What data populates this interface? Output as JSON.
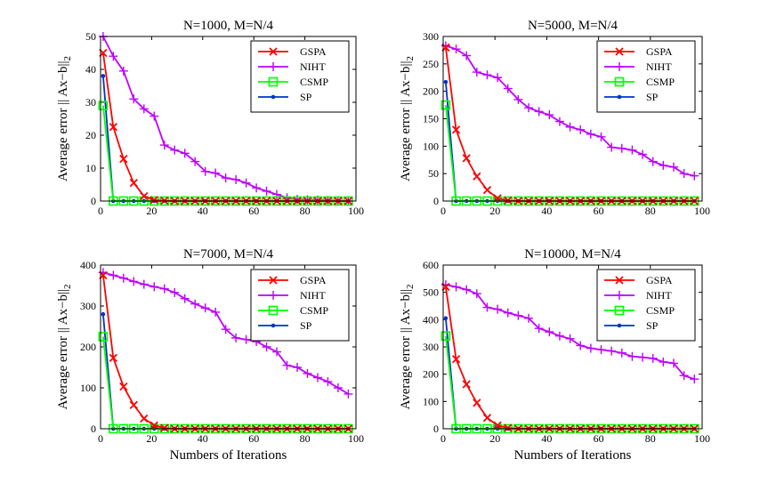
{
  "figure": {
    "ylabel_text": "Average error || Ax−b||",
    "ylabel_subscript": "2",
    "xlabel_text": "Numbers of Iterations"
  },
  "series_styles": [
    {
      "name": "GSPA",
      "color": "#ff0000",
      "marker": "x"
    },
    {
      "name": "NIHT",
      "color": "#bf00ff",
      "marker": "plus"
    },
    {
      "name": "CSMP",
      "color": "#00ff00",
      "marker": "square"
    },
    {
      "name": "SP",
      "color": "#0033cc",
      "marker": "dot"
    }
  ],
  "chart_data": [
    {
      "type": "line",
      "title": "N=1000, M=N/4",
      "xlim": [
        0,
        100
      ],
      "ylim": [
        0,
        50
      ],
      "xticks": [
        0,
        20,
        40,
        60,
        80,
        100
      ],
      "yticks": [
        0,
        10,
        20,
        30,
        40,
        50
      ],
      "xlabel": "",
      "ylabel": "Average error || Ax−b||2",
      "legend": "top-right",
      "series": [
        {
          "name": "GSPA",
          "x": [
            1,
            5,
            9,
            13,
            17,
            21,
            25,
            29,
            33,
            37,
            41,
            45,
            49,
            53,
            57,
            61,
            65,
            69,
            73,
            77,
            81,
            85,
            89,
            93,
            97
          ],
          "y": [
            45,
            22.5,
            12.8,
            5.5,
            1.5,
            0.3,
            0.1,
            0,
            0,
            0,
            0,
            0,
            0,
            0,
            0,
            0,
            0,
            0,
            0,
            0,
            0,
            0,
            0,
            0,
            0
          ]
        },
        {
          "name": "NIHT",
          "x": [
            1,
            5,
            9,
            13,
            17,
            21,
            25,
            29,
            33,
            37,
            41,
            45,
            49,
            53,
            57,
            61,
            65,
            69,
            73,
            77,
            81,
            85,
            89,
            93,
            97
          ],
          "y": [
            50,
            44,
            39.5,
            31,
            28,
            25.8,
            17,
            15.5,
            14.5,
            12,
            9,
            8.5,
            7,
            6.5,
            5.5,
            4,
            3,
            2,
            1,
            0.5,
            0.4,
            0.3,
            0.2,
            0.1,
            0
          ]
        },
        {
          "name": "CSMP",
          "x": [
            1,
            5,
            9,
            13,
            17,
            21,
            25,
            29,
            33,
            37,
            41,
            45,
            49,
            53,
            57,
            61,
            65,
            69,
            73,
            77,
            81,
            85,
            89,
            93,
            97
          ],
          "y": [
            29,
            0,
            0,
            0,
            0,
            0,
            0,
            0,
            0,
            0,
            0,
            0,
            0,
            0,
            0,
            0,
            0,
            0,
            0,
            0,
            0,
            0,
            0,
            0,
            0
          ]
        },
        {
          "name": "SP",
          "x": [
            1,
            5,
            9,
            13,
            17,
            21,
            25,
            29,
            33,
            37,
            41,
            45,
            49,
            53,
            57,
            61,
            65,
            69,
            73,
            77,
            81,
            85,
            89,
            93,
            97
          ],
          "y": [
            38,
            0,
            0,
            0,
            0,
            0,
            0,
            0,
            0,
            0,
            0,
            0,
            0,
            0,
            0,
            0,
            0,
            0,
            0,
            0,
            0,
            0,
            0,
            0,
            0
          ]
        }
      ]
    },
    {
      "type": "line",
      "title": "N=5000, M=N/4",
      "xlim": [
        0,
        100
      ],
      "ylim": [
        0,
        300
      ],
      "xticks": [
        0,
        20,
        40,
        60,
        80,
        100
      ],
      "yticks": [
        0,
        50,
        100,
        150,
        200,
        250,
        300
      ],
      "xlabel": "",
      "ylabel": "Average error || Ax−b||2",
      "legend": "top-right",
      "series": [
        {
          "name": "GSPA",
          "x": [
            1,
            5,
            9,
            13,
            17,
            21,
            25,
            29,
            33,
            37,
            41,
            45,
            49,
            53,
            57,
            61,
            65,
            69,
            73,
            77,
            81,
            85,
            89,
            93,
            97
          ],
          "y": [
            280,
            130,
            78,
            45,
            20,
            5,
            1,
            0,
            0,
            0,
            0,
            0,
            0,
            0,
            0,
            0,
            0,
            0,
            0,
            0,
            0,
            0,
            0,
            0,
            0
          ]
        },
        {
          "name": "NIHT",
          "x": [
            1,
            5,
            9,
            13,
            17,
            21,
            25,
            29,
            33,
            37,
            41,
            45,
            49,
            53,
            57,
            61,
            65,
            69,
            73,
            77,
            81,
            85,
            89,
            93,
            97
          ],
          "y": [
            283,
            277,
            265,
            235,
            230,
            225,
            205,
            185,
            170,
            163,
            157,
            145,
            135,
            130,
            122,
            117,
            98,
            96,
            93,
            85,
            72,
            65,
            62,
            50,
            46
          ]
        },
        {
          "name": "CSMP",
          "x": [
            1,
            5,
            9,
            13,
            17,
            21,
            25,
            29,
            33,
            37,
            41,
            45,
            49,
            53,
            57,
            61,
            65,
            69,
            73,
            77,
            81,
            85,
            89,
            93,
            97
          ],
          "y": [
            175,
            0,
            0,
            0,
            0,
            0,
            0,
            0,
            0,
            0,
            0,
            0,
            0,
            0,
            0,
            0,
            0,
            0,
            0,
            0,
            0,
            0,
            0,
            0,
            0
          ]
        },
        {
          "name": "SP",
          "x": [
            1,
            5,
            9,
            13,
            17,
            21,
            25,
            29,
            33,
            37,
            41,
            45,
            49,
            53,
            57,
            61,
            65,
            69,
            73,
            77,
            81,
            85,
            89,
            93,
            97
          ],
          "y": [
            217,
            0,
            0,
            0,
            0,
            0,
            0,
            0,
            0,
            0,
            0,
            0,
            0,
            0,
            0,
            0,
            0,
            0,
            0,
            0,
            0,
            0,
            0,
            0,
            0
          ]
        }
      ]
    },
    {
      "type": "line",
      "title": "N=7000, M=N/4",
      "xlim": [
        0,
        100
      ],
      "ylim": [
        0,
        400
      ],
      "xticks": [
        0,
        20,
        40,
        60,
        80,
        100
      ],
      "yticks": [
        0,
        100,
        200,
        300,
        400
      ],
      "xlabel": "Numbers of Iterations",
      "ylabel": "Average error || Ax−b||2",
      "legend": "top-right",
      "series": [
        {
          "name": "GSPA",
          "x": [
            1,
            5,
            9,
            13,
            17,
            21,
            25,
            29,
            33,
            37,
            41,
            45,
            49,
            53,
            57,
            61,
            65,
            69,
            73,
            77,
            81,
            85,
            89,
            93,
            97
          ],
          "y": [
            375,
            173,
            103,
            58,
            25,
            8,
            2,
            0,
            0,
            0,
            0,
            0,
            0,
            0,
            0,
            0,
            0,
            0,
            0,
            0,
            0,
            0,
            0,
            0,
            0
          ]
        },
        {
          "name": "NIHT",
          "x": [
            1,
            5,
            9,
            13,
            17,
            21,
            25,
            29,
            33,
            37,
            41,
            45,
            49,
            53,
            57,
            61,
            65,
            69,
            73,
            77,
            81,
            85,
            89,
            93,
            97
          ],
          "y": [
            382,
            375,
            368,
            360,
            353,
            347,
            342,
            333,
            318,
            305,
            295,
            285,
            243,
            222,
            218,
            213,
            200,
            188,
            155,
            150,
            135,
            125,
            115,
            100,
            85
          ]
        },
        {
          "name": "CSMP",
          "x": [
            1,
            5,
            9,
            13,
            17,
            21,
            25,
            29,
            33,
            37,
            41,
            45,
            49,
            53,
            57,
            61,
            65,
            69,
            73,
            77,
            81,
            85,
            89,
            93,
            97
          ],
          "y": [
            225,
            0,
            0,
            0,
            0,
            0,
            0,
            0,
            0,
            0,
            0,
            0,
            0,
            0,
            0,
            0,
            0,
            0,
            0,
            0,
            0,
            0,
            0,
            0,
            0
          ]
        },
        {
          "name": "SP",
          "x": [
            1,
            5,
            9,
            13,
            17,
            21,
            25,
            29,
            33,
            37,
            41,
            45,
            49,
            53,
            57,
            61,
            65,
            69,
            73,
            77,
            81,
            85,
            89,
            93,
            97
          ],
          "y": [
            280,
            0,
            0,
            0,
            0,
            0,
            0,
            0,
            0,
            0,
            0,
            0,
            0,
            0,
            0,
            0,
            0,
            0,
            0,
            0,
            0,
            0,
            0,
            0,
            0
          ]
        }
      ]
    },
    {
      "type": "line",
      "title": "N=10000, M=N/4",
      "xlim": [
        0,
        100
      ],
      "ylim": [
        0,
        600
      ],
      "xticks": [
        0,
        20,
        40,
        60,
        80,
        100
      ],
      "yticks": [
        0,
        100,
        200,
        300,
        400,
        500,
        600
      ],
      "xlabel": "Numbers of Iterations",
      "ylabel": "Average error || Ax−b||2",
      "legend": "top-right",
      "series": [
        {
          "name": "GSPA",
          "x": [
            1,
            5,
            9,
            13,
            17,
            21,
            25,
            29,
            33,
            37,
            41,
            45,
            49,
            53,
            57,
            61,
            65,
            69,
            73,
            77,
            81,
            85,
            89,
            93,
            97
          ],
          "y": [
            520,
            255,
            163,
            95,
            40,
            12,
            3,
            0,
            0,
            0,
            0,
            0,
            0,
            0,
            0,
            0,
            0,
            0,
            0,
            0,
            0,
            0,
            0,
            0,
            0
          ]
        },
        {
          "name": "NIHT",
          "x": [
            1,
            5,
            9,
            13,
            17,
            21,
            25,
            29,
            33,
            37,
            41,
            45,
            49,
            53,
            57,
            61,
            65,
            69,
            73,
            77,
            81,
            85,
            89,
            93,
            97
          ],
          "y": [
            528,
            520,
            510,
            495,
            445,
            438,
            425,
            415,
            405,
            368,
            355,
            340,
            330,
            305,
            295,
            290,
            285,
            278,
            265,
            262,
            258,
            245,
            240,
            195,
            182
          ]
        },
        {
          "name": "CSMP",
          "x": [
            1,
            5,
            9,
            13,
            17,
            21,
            25,
            29,
            33,
            37,
            41,
            45,
            49,
            53,
            57,
            61,
            65,
            69,
            73,
            77,
            81,
            85,
            89,
            93,
            97
          ],
          "y": [
            340,
            0,
            0,
            0,
            0,
            0,
            0,
            0,
            0,
            0,
            0,
            0,
            0,
            0,
            0,
            0,
            0,
            0,
            0,
            0,
            0,
            0,
            0,
            0,
            0
          ]
        },
        {
          "name": "SP",
          "x": [
            1,
            5,
            9,
            13,
            17,
            21,
            25,
            29,
            33,
            37,
            41,
            45,
            49,
            53,
            57,
            61,
            65,
            69,
            73,
            77,
            81,
            85,
            89,
            93,
            97
          ],
          "y": [
            405,
            0,
            0,
            0,
            0,
            0,
            0,
            0,
            0,
            0,
            0,
            0,
            0,
            0,
            0,
            0,
            0,
            0,
            0,
            0,
            0,
            0,
            0,
            0,
            0
          ]
        }
      ]
    }
  ]
}
